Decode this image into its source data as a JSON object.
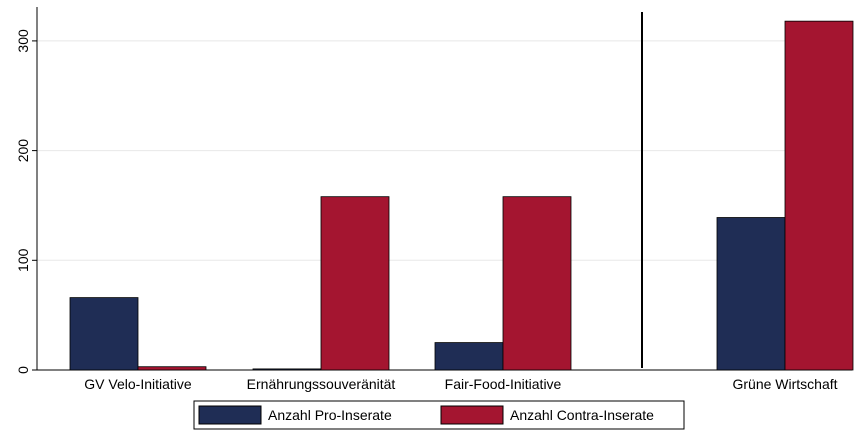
{
  "chart_data": {
    "type": "bar",
    "categories": [
      "GV Velo-Initiative",
      "Ernährungssouveränität",
      "Fair-Food-Initiative",
      "Grüne Wirtschaft"
    ],
    "series": [
      {
        "name": "Anzahl Pro-Inserate",
        "values": [
          66,
          1,
          25,
          139
        ],
        "color": "#1f2d55"
      },
      {
        "name": "Anzahl Contra-Inserate",
        "values": [
          3,
          158,
          158,
          318
        ],
        "color": "#a41530"
      }
    ],
    "yticks": [
      0,
      100,
      200,
      300
    ],
    "ylim": [
      0,
      330
    ],
    "grid": true,
    "legend_position": "bottom",
    "separator_after_category": 2
  }
}
